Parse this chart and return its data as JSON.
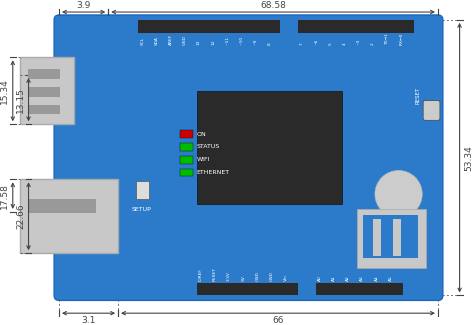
{
  "board_blue": "#2b7bca",
  "connector_gray": "#c8c8c8",
  "connector_dark_gray": "#999999",
  "chip_dark": "#2a2a2a",
  "bg_color": "#ffffff",
  "dim_color": "#444444",
  "led_red": "#cc0000",
  "led_green": "#00bb00",
  "dim_68_58": "68.58",
  "dim_66": "66",
  "dim_53_34": "53.34",
  "dim_15_34": "15.34",
  "dim_13_15": "13.15",
  "dim_17_58": "17.58",
  "dim_22_66": "22.66",
  "dim_3_9": "3.9",
  "dim_3_1": "3.1",
  "top_pins_left": [
    "SCL",
    "SDA",
    "AREF",
    "GND",
    "13",
    "12",
    "~11",
    "~10",
    "~9",
    "8"
  ],
  "top_pins_right": [
    "7",
    "~6",
    "5",
    "4",
    "~3",
    "2",
    "TX→1",
    "RX←0"
  ],
  "bottom_pins_left": [
    "IOREF",
    "RESET",
    "3.3V",
    "5V",
    "GND",
    "GND",
    "Vin"
  ],
  "bottom_pins_right": [
    "A0",
    "A1",
    "A2",
    "A3",
    "A4",
    "A5"
  ],
  "leds": [
    {
      "color": "#cc0000",
      "label": "ON"
    },
    {
      "color": "#00bb00",
      "label": "STATUS"
    },
    {
      "color": "#00bb00",
      "label": "WIFI"
    },
    {
      "color": "#00bb00",
      "label": "ETHERNET"
    }
  ],
  "setup_label": "SETUP",
  "reset_label": "RESET"
}
